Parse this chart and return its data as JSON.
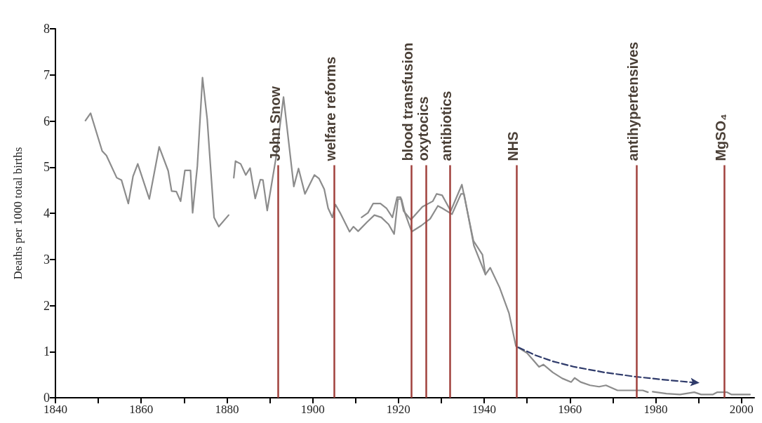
{
  "chart_data": {
    "type": "line",
    "ylabel": "Deaths per 1000 total births",
    "xlim": [
      1840,
      2003
    ],
    "xticks": [
      1840,
      {
        "value": 1850,
        "label": null
      },
      1860,
      {
        "value": 1870,
        "label": null
      },
      1880,
      {
        "value": 1890,
        "label": null
      },
      1900,
      {
        "value": 1910,
        "label": null
      },
      1920,
      {
        "value": 1930,
        "label": null
      },
      1940,
      {
        "value": 1950,
        "label": null
      },
      1960,
      {
        "value": 1970,
        "label": null
      },
      1980,
      {
        "value": 1990,
        "label": null
      },
      2000
    ],
    "ylim": [
      0,
      8
    ],
    "yticks": [
      0,
      1,
      2,
      3,
      4,
      5,
      6,
      7,
      8
    ],
    "grid": false,
    "marker": "none",
    "series": [
      {
        "color": "#8c8c8c",
        "line_style": "solid",
        "x": [
          1847.0,
          1848.2,
          1850.9,
          1851.9,
          1854.3,
          1855.4,
          1857.0,
          1858.1,
          1859.2,
          1861.9,
          1864.2,
          1866.3,
          1867.1,
          1868.2,
          1869.2,
          1870.2,
          1871.5,
          1872.0,
          1873.1,
          1874.3,
          1875.4,
          1877.0,
          1878.1,
          1880.4,
          1881.0,
          1881.6,
          1882.0,
          1883.2,
          1884.4,
          1885.4,
          1886.6,
          1887.8,
          1888.4,
          1889.4,
          1891.4,
          1893.2,
          1895.6,
          1896.7,
          1898.2,
          1900.4,
          1901.5,
          1902.7,
          1903.6,
          1904.6,
          1905.3,
          1906.4,
          1908.6,
          1909.5,
          1910.6,
          1912.7,
          1914.4,
          1916.0,
          1917.7,
          1919.0,
          1919.9,
          1920.7,
          1921.5,
          1923.1,
          1925.3,
          1927.4,
          1929.2,
          1930.2,
          1932.5,
          1934.6,
          1935.3,
          1937.6,
          1940.3,
          1941.4,
          1943.6,
          1945.8,
          1947.4,
          1950.0,
          1952.8,
          1953.8,
          1956.0,
          1958.2,
          1960.3,
          1961.1,
          1962.5,
          1964.7,
          1966.8,
          1968.4,
          1971.1,
          1977.0,
          1978.2,
          1978.8,
          1979.3,
          1982.5,
          1985.7,
          1989.0,
          1990.6,
          1993.3,
          1994.4,
          1996.6,
          1997.7,
          2002.0
        ],
        "values": [
          6.01,
          6.17,
          5.35,
          5.25,
          4.77,
          4.72,
          4.21,
          4.8,
          5.07,
          4.31,
          5.44,
          4.92,
          4.48,
          4.47,
          4.26,
          4.93,
          4.93,
          4.01,
          5.02,
          6.94,
          6.04,
          3.91,
          3.71,
          3.96,
          null,
          4.77,
          5.13,
          5.07,
          4.83,
          4.98,
          4.32,
          4.73,
          4.72,
          4.06,
          5.18,
          6.52,
          4.58,
          4.97,
          4.42,
          4.83,
          4.75,
          4.52,
          4.11,
          3.91,
          4.19,
          4.01,
          3.6,
          3.71,
          3.61,
          3.81,
          3.96,
          3.91,
          3.76,
          3.55,
          4.31,
          4.31,
          4.01,
          3.6,
          3.73,
          3.88,
          4.16,
          4.11,
          3.98,
          4.42,
          4.42,
          3.3,
          2.67,
          2.82,
          2.39,
          1.83,
          1.12,
          0.97,
          0.67,
          0.72,
          0.55,
          0.42,
          0.34,
          0.43,
          0.34,
          0.27,
          0.24,
          0.27,
          0.16,
          0.16,
          0.12,
          null,
          0.13,
          0.09,
          0.07,
          0.12,
          0.07,
          0.07,
          0.12,
          0.12,
          0.07,
          0.07
        ]
      },
      {
        "color": "#8c8c8c",
        "line_style": "solid",
        "x": [
          1911.4,
          1912.9,
          1914.1,
          1915.8,
          1917.2,
          1918.6,
          1919.7,
          1920.5,
          1921.2,
          1922.9,
          1925.6,
          1928.0,
          1928.9,
          1930.2,
          1932.2,
          1934.8,
          1937.5,
          1939.6,
          1940.3
        ],
        "values": [
          3.91,
          4.01,
          4.21,
          4.21,
          4.11,
          3.91,
          4.35,
          4.35,
          4.05,
          3.86,
          4.14,
          4.26,
          4.42,
          4.39,
          4.05,
          4.62,
          3.4,
          3.1,
          2.67
        ]
      },
      {
        "color": "#2f3b6b",
        "line_style": "dashed",
        "x": [
          1948,
          1952,
          1956,
          1961,
          1968,
          1975,
          1982,
          1989
        ],
        "values": [
          1.09,
          0.92,
          0.79,
          0.67,
          0.55,
          0.46,
          0.39,
          0.33
        ]
      }
    ],
    "ref_lines": [
      {
        "axis": "x",
        "value": 1892,
        "label": "John Snow",
        "color": "#a0413c"
      },
      {
        "axis": "x",
        "value": 1905,
        "label": "welfare reforms",
        "color": "#a0413c"
      },
      {
        "axis": "x",
        "value": 1923,
        "label": "blood transfusion",
        "color": "#a0413c"
      },
      {
        "axis": "x",
        "value": 1926.5,
        "label": "oxytocics",
        "color": "#a0413c"
      },
      {
        "axis": "x",
        "value": 1932,
        "label": "antibiotics",
        "color": "#a0413c"
      },
      {
        "axis": "x",
        "value": 1947.5,
        "label": "NHS",
        "color": "#a0413c"
      },
      {
        "axis": "x",
        "value": 1975.5,
        "label": "antihypertensives",
        "color": "#a0413c"
      },
      {
        "axis": "x",
        "value": 1996,
        "label": "MgSO₄",
        "color": "#a0413c"
      }
    ]
  }
}
